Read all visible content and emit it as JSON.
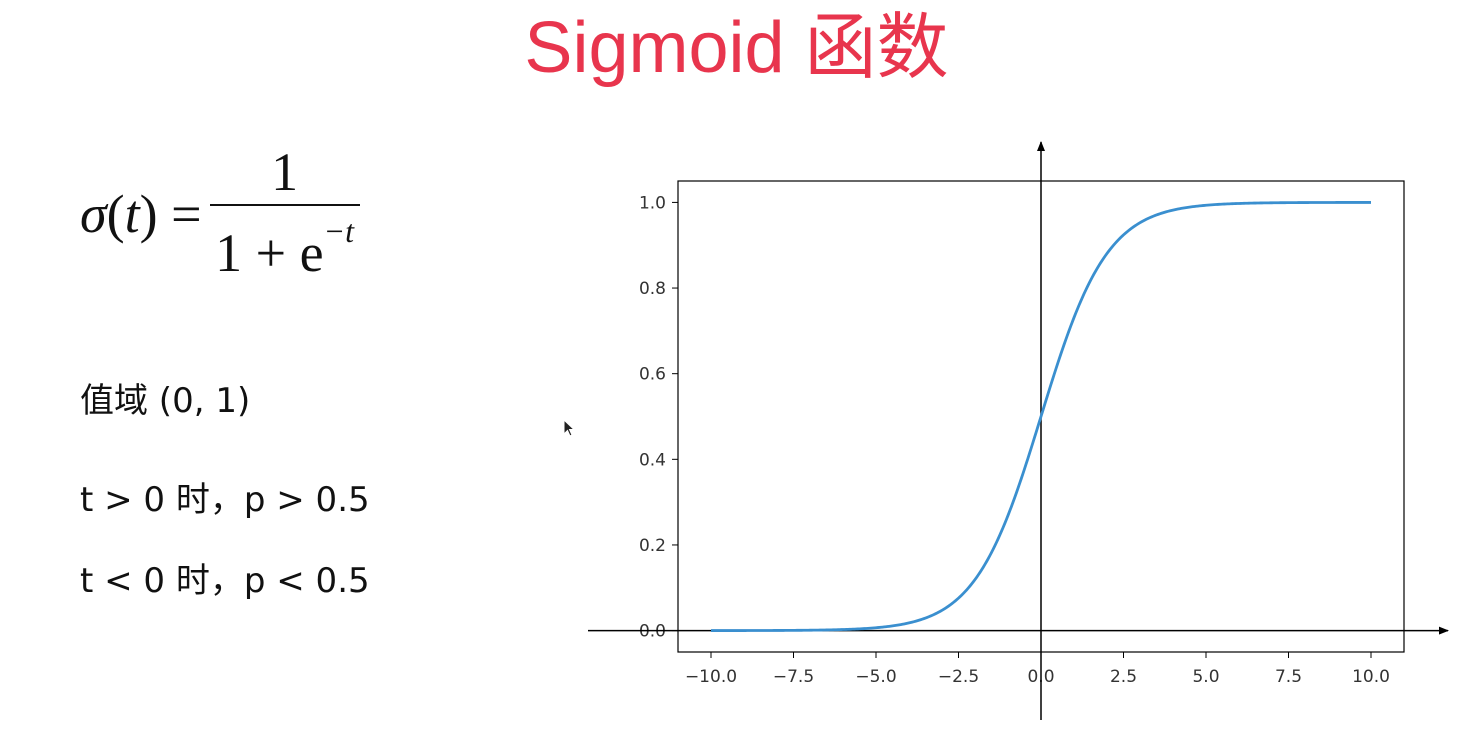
{
  "slide": {
    "title": "Sigmoid 函数",
    "formula": {
      "lhs_func": "σ",
      "lhs_var": "t",
      "numerator": "1",
      "denominator_base": "1 + e",
      "denominator_exp": "−t"
    },
    "notes": [
      "值域 (0, 1)",
      "t > 0 时，p > 0.5",
      "t < 0 时，p < 0.5"
    ]
  },
  "colors": {
    "title": "#e8354d",
    "curve": "#3a8fcf",
    "axes": "#000000",
    "tick_text": "#333333"
  },
  "chart_data": {
    "type": "line",
    "title": "",
    "xlabel": "",
    "ylabel": "",
    "function": "sigmoid",
    "xlim": [
      -11,
      11
    ],
    "ylim": [
      -0.05,
      1.05
    ],
    "xticks": [
      -10.0,
      -7.5,
      -5.0,
      -2.5,
      0.0,
      2.5,
      5.0,
      7.5,
      10.0
    ],
    "xtick_labels": [
      "−10.0",
      "−7.5",
      "−5.0",
      "−2.5",
      "0.0",
      "2.5",
      "5.0",
      "7.5",
      "10.0"
    ],
    "yticks": [
      0.0,
      0.2,
      0.4,
      0.6,
      0.8,
      1.0
    ],
    "ytick_labels": [
      "0.0",
      "0.2",
      "0.4",
      "0.6",
      "0.8",
      "1.0"
    ],
    "grid": false,
    "series": [
      {
        "x": [
          -10,
          -9,
          -8,
          -7,
          -6,
          -5,
          -4,
          -3,
          -2.5,
          -2,
          -1.5,
          -1,
          -0.5,
          0,
          0.5,
          1,
          1.5,
          2,
          2.5,
          3,
          4,
          5,
          6,
          7,
          8,
          9,
          10
        ],
        "y": [
          0.0,
          0.0001,
          0.0003,
          0.0009,
          0.0025,
          0.0067,
          0.018,
          0.047,
          0.076,
          0.119,
          0.182,
          0.269,
          0.378,
          0.5,
          0.622,
          0.731,
          0.818,
          0.881,
          0.924,
          0.953,
          0.982,
          0.9933,
          0.9975,
          0.9991,
          0.9997,
          0.9999,
          1.0
        ]
      }
    ]
  }
}
